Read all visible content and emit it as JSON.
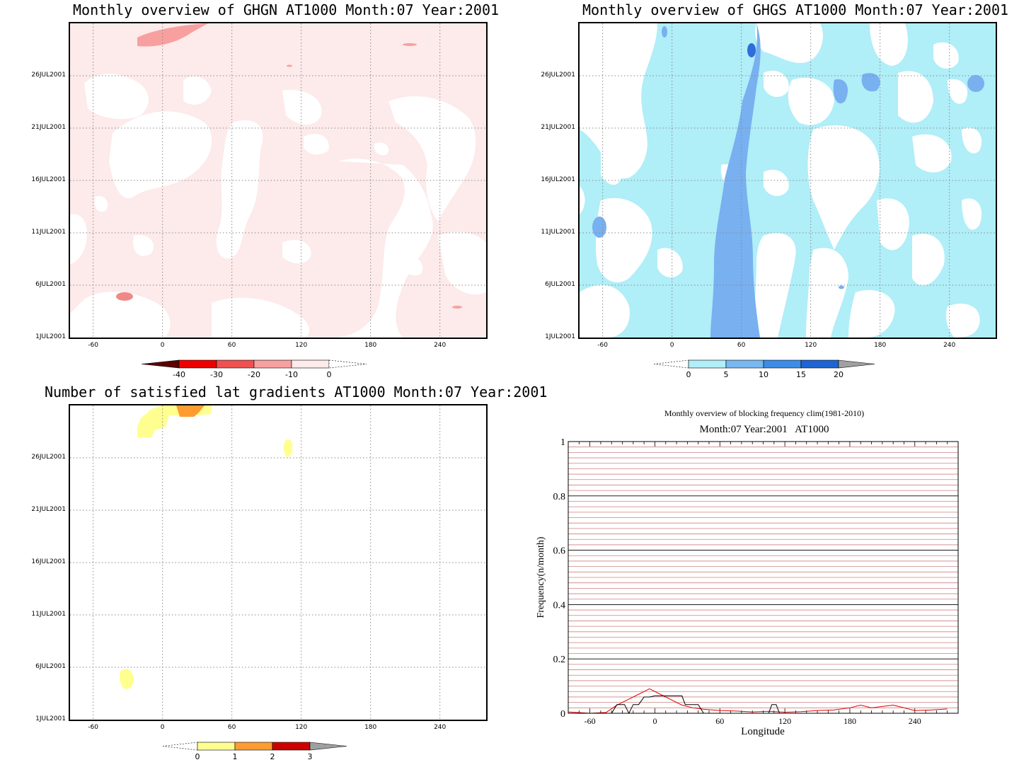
{
  "chart_data": [
    {
      "type": "heatmap",
      "title": "Monthly overview of GHGN AT1000 Month:07 Year:2001",
      "xticks": [
        "-60",
        "0",
        "60",
        "120",
        "180",
        "240"
      ],
      "yticks": [
        "1JUL2001",
        "6JUL2001",
        "11JUL2001",
        "16JUL2001",
        "21JUL2001",
        "26JUL2001"
      ],
      "xlim": [
        -80,
        280
      ],
      "colorbar": {
        "labels": [
          "-40",
          "-30",
          "-20",
          "-10",
          "0"
        ],
        "colors": [
          "#5a0000",
          "#ee0000",
          "#f05050",
          "#f8a0a0",
          "#fdeaea"
        ]
      },
      "colors": {
        "background": "#fdeaea",
        "clear": "#ffffff",
        "strong": "#f8a0a0",
        "medium": "#f07070"
      }
    },
    {
      "type": "heatmap",
      "title": "Monthly overview of GHGS AT1000 Month:07 Year:2001",
      "xticks": [
        "-60",
        "0",
        "60",
        "120",
        "180",
        "240"
      ],
      "yticks": [
        "1JUL2001",
        "6JUL2001",
        "11JUL2001",
        "16JUL2001",
        "21JUL2001",
        "26JUL2001"
      ],
      "xlim": [
        -80,
        280
      ],
      "colorbar": {
        "labels": [
          "0",
          "5",
          "10",
          "15",
          "20"
        ],
        "colors": [
          "#b0eef8",
          "#78b8f0",
          "#3c8ce8",
          "#1e64d2",
          "#a0a0a0"
        ]
      },
      "colors": {
        "light": "#b0eef8",
        "mid": "#78b0f0",
        "dark": "#2e6ed8"
      }
    },
    {
      "type": "heatmap",
      "title": "Number of satisfied lat gradients AT1000 Month:07 Year:2001",
      "xticks": [
        "-60",
        "0",
        "60",
        "120",
        "180",
        "240"
      ],
      "yticks": [
        "1JUL2001",
        "6JUL2001",
        "11JUL2001",
        "16JUL2001",
        "21JUL2001",
        "26JUL2001"
      ],
      "xlim": [
        -80,
        280
      ],
      "colorbar": {
        "labels": [
          "0",
          "1",
          "2",
          "3"
        ],
        "colors": [
          "#ffff90",
          "#ff9c30",
          "#cc0000",
          "#a0a0a0"
        ]
      },
      "colors": {
        "low": "#ffff90",
        "mid": "#ff9c30"
      }
    },
    {
      "type": "line",
      "title": "Monthly overview of blocking frequency clim(1981-2010)",
      "subtitle": "Month:07 Year:2001   AT1000",
      "xlabel": "Longitude",
      "ylabel": "Frequency(n/month)",
      "xticks": [
        "-60",
        "0",
        "60",
        "120",
        "180",
        "240"
      ],
      "yticks": [
        "0",
        "0.2",
        "0.4",
        "0.6",
        "0.8",
        "1"
      ],
      "xlim": [
        -80,
        280
      ],
      "ylim": [
        0,
        1
      ],
      "series": [
        {
          "color": "#e00000",
          "x": [
            -80,
            -60,
            -45,
            -35,
            -25,
            -15,
            -10,
            -5,
            5,
            15,
            25,
            35,
            45,
            60,
            75,
            90,
            105,
            120,
            135,
            150,
            165,
            180,
            190,
            200,
            210,
            220,
            230,
            240,
            255,
            270
          ],
          "y": [
            0.005,
            0.0,
            0.003,
            0.03,
            0.05,
            0.07,
            0.08,
            0.09,
            0.07,
            0.05,
            0.03,
            0.02,
            0.015,
            0.01,
            0.008,
            0.005,
            0.007,
            0.004,
            0.006,
            0.01,
            0.012,
            0.02,
            0.03,
            0.02,
            0.025,
            0.03,
            0.02,
            0.01,
            0.012,
            0.016
          ]
        },
        {
          "color": "#000000",
          "x": [
            -80,
            -40,
            -35,
            -28,
            -24,
            -20,
            -15,
            -10,
            -5,
            0,
            25,
            28,
            40,
            45,
            105,
            108,
            112,
            115,
            270
          ],
          "y": [
            0,
            0,
            0.032,
            0.032,
            0,
            0.032,
            0.032,
            0.06,
            0.06,
            0.064,
            0.064,
            0.032,
            0.032,
            0,
            0,
            0.032,
            0.032,
            0,
            0
          ]
        }
      ]
    }
  ]
}
